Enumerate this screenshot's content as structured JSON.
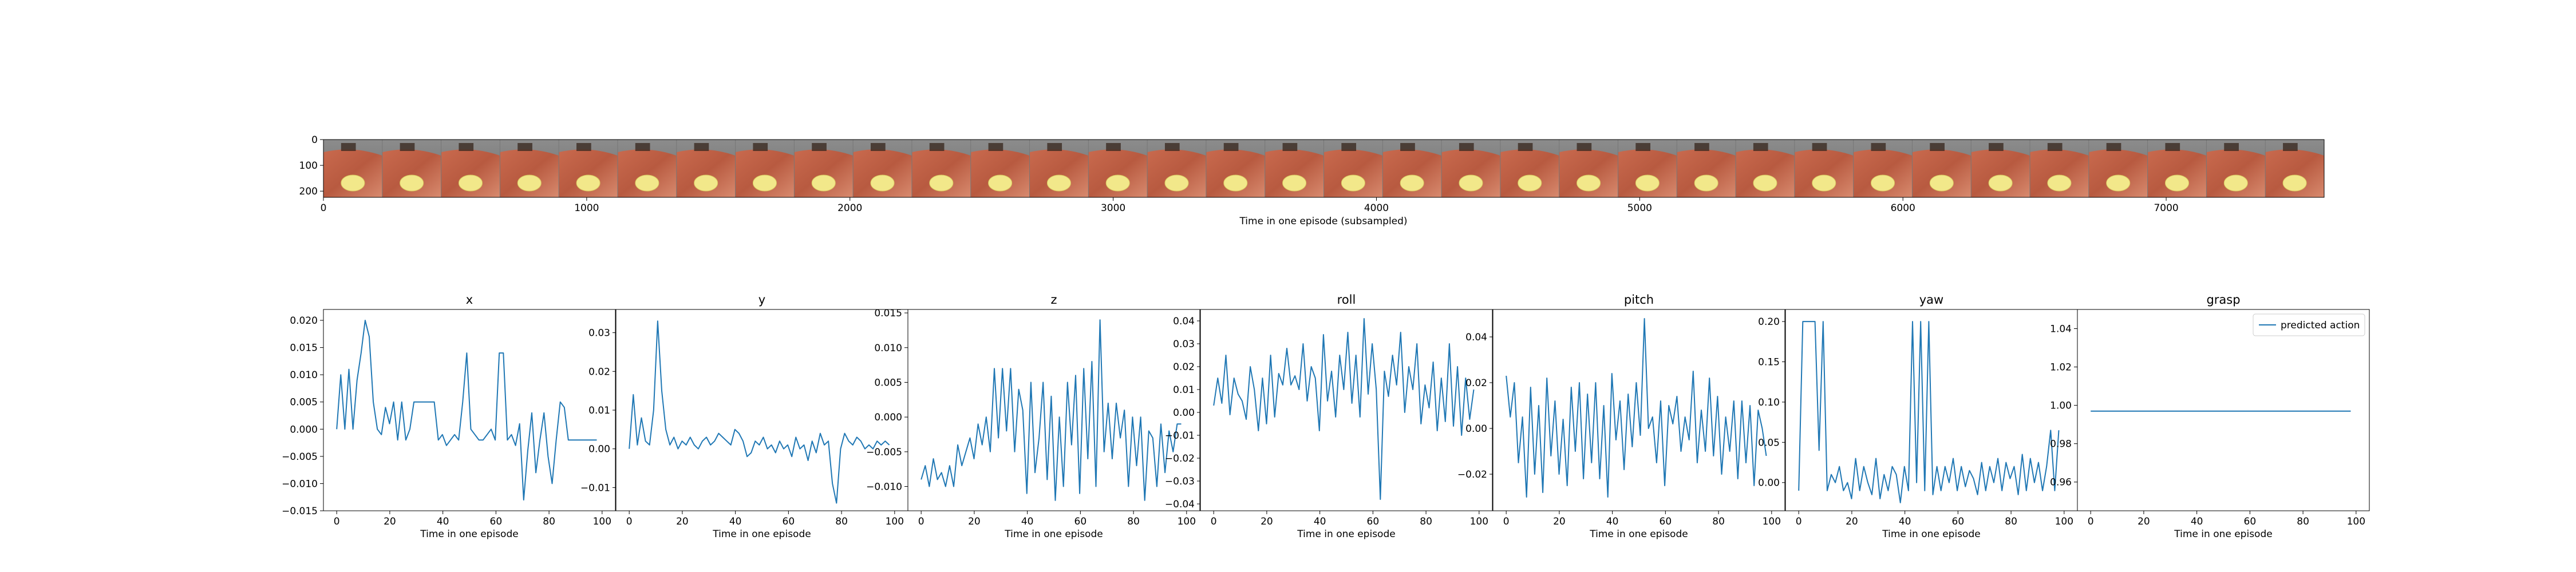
{
  "strip": {
    "xlabel": "Time in one episode (subsampled)",
    "x_ticks": [
      "0",
      "1000",
      "2000",
      "3000",
      "4000",
      "5000",
      "6000",
      "7000"
    ],
    "y_ticks": [
      "0",
      "100",
      "200"
    ],
    "frame_count": 34
  },
  "chart_data": [
    {
      "type": "line",
      "title": "x",
      "xlabel": "Time in one episode",
      "xlim": [
        -5,
        105
      ],
      "ylim": [
        -0.015,
        0.022
      ],
      "x_ticks": [
        "0",
        "20",
        "40",
        "60",
        "80",
        "100"
      ],
      "y_ticks": [
        "−0.015",
        "−0.010",
        "−0.005",
        "0.000",
        "0.005",
        "0.010",
        "0.015",
        "0.020"
      ],
      "y_tick_values": [
        -0.015,
        -0.01,
        -0.005,
        0.0,
        0.005,
        0.01,
        0.015,
        0.02
      ],
      "series": [
        {
          "values": [
            0.0,
            0.01,
            0.0,
            0.011,
            0.0,
            0.009,
            0.014,
            0.02,
            0.017,
            0.005,
            0.0,
            -0.001,
            0.004,
            0.001,
            0.005,
            -0.002,
            0.005,
            -0.002,
            0.0,
            0.005,
            0.005,
            0.005,
            0.005,
            0.005,
            0.005,
            -0.002,
            -0.001,
            -0.003,
            -0.002,
            -0.001,
            -0.002,
            0.005,
            0.014,
            0.0,
            -0.001,
            -0.002,
            -0.002,
            -0.001,
            0.0,
            -0.002,
            0.014,
            0.014,
            -0.002,
            -0.001,
            -0.003,
            0.001,
            -0.013,
            -0.004,
            0.003,
            -0.008,
            -0.002,
            0.003,
            -0.005,
            -0.01,
            -0.002,
            0.005,
            0.004,
            -0.002,
            -0.002,
            -0.002,
            -0.002,
            -0.002,
            -0.002,
            -0.002,
            -0.002
          ]
        }
      ]
    },
    {
      "type": "line",
      "title": "y",
      "xlabel": "Time in one episode",
      "xlim": [
        -5,
        105
      ],
      "ylim": [
        -0.016,
        0.036
      ],
      "x_ticks": [
        "0",
        "20",
        "40",
        "60",
        "80",
        "100"
      ],
      "y_ticks": [
        "−0.01",
        "0.00",
        "0.01",
        "0.02",
        "0.03"
      ],
      "y_tick_values": [
        -0.01,
        0.0,
        0.01,
        0.02,
        0.03
      ],
      "series": [
        {
          "values": [
            0.0,
            0.014,
            0.001,
            0.008,
            0.002,
            0.001,
            0.01,
            0.033,
            0.015,
            0.005,
            0.001,
            0.003,
            0.0,
            0.002,
            0.001,
            0.003,
            0.001,
            0.0,
            0.002,
            0.003,
            0.001,
            0.002,
            0.004,
            0.003,
            0.002,
            0.001,
            0.005,
            0.004,
            0.002,
            -0.002,
            -0.001,
            0.002,
            0.001,
            0.003,
            0.0,
            0.001,
            -0.001,
            0.002,
            0.0,
            0.001,
            -0.002,
            0.003,
            0.0,
            0.001,
            -0.003,
            0.002,
            -0.001,
            0.004,
            0.001,
            0.002,
            -0.009,
            -0.014,
            0.0,
            0.004,
            0.002,
            0.001,
            0.003,
            0.002,
            0.0,
            0.001,
            0.0,
            0.002,
            0.001,
            0.002,
            0.001
          ]
        }
      ]
    },
    {
      "type": "line",
      "title": "z",
      "xlabel": "Time in one episode",
      "xlim": [
        -5,
        105
      ],
      "ylim": [
        -0.0135,
        0.0155
      ],
      "x_ticks": [
        "0",
        "20",
        "40",
        "60",
        "80",
        "100"
      ],
      "y_ticks": [
        "−0.010",
        "−0.005",
        "0.000",
        "0.005",
        "0.010",
        "0.015"
      ],
      "y_tick_values": [
        -0.01,
        -0.005,
        0.0,
        0.005,
        0.01,
        0.015
      ],
      "series": [
        {
          "values": [
            -0.009,
            -0.007,
            -0.01,
            -0.006,
            -0.009,
            -0.008,
            -0.01,
            -0.007,
            -0.01,
            -0.004,
            -0.007,
            -0.005,
            -0.003,
            -0.006,
            -0.001,
            -0.004,
            0.0,
            -0.005,
            0.007,
            -0.003,
            0.007,
            -0.002,
            0.007,
            -0.005,
            0.004,
            0.001,
            -0.011,
            0.005,
            -0.008,
            -0.003,
            0.005,
            -0.009,
            0.003,
            -0.012,
            0.0,
            -0.01,
            0.005,
            -0.004,
            0.006,
            -0.011,
            0.007,
            -0.006,
            0.008,
            -0.01,
            0.014,
            -0.005,
            0.002,
            -0.006,
            0.002,
            -0.003,
            0.001,
            -0.01,
            0.0,
            -0.007,
            0.0,
            -0.012,
            -0.002,
            -0.003,
            -0.01,
            -0.001,
            -0.008,
            -0.002,
            -0.005,
            -0.001,
            -0.001
          ]
        }
      ]
    },
    {
      "type": "line",
      "title": "roll",
      "xlabel": "Time in one episode",
      "xlim": [
        -5,
        105
      ],
      "ylim": [
        -0.043,
        0.045
      ],
      "x_ticks": [
        "0",
        "20",
        "40",
        "60",
        "80",
        "100"
      ],
      "y_ticks": [
        "−0.04",
        "−0.03",
        "−0.02",
        "−0.01",
        "0.00",
        "0.01",
        "0.02",
        "0.03",
        "0.04"
      ],
      "y_tick_values": [
        -0.04,
        -0.03,
        -0.02,
        -0.01,
        0.0,
        0.01,
        0.02,
        0.03,
        0.04
      ],
      "series": [
        {
          "values": [
            0.003,
            0.015,
            0.004,
            0.025,
            -0.001,
            0.015,
            0.008,
            0.005,
            -0.003,
            0.02,
            0.01,
            -0.008,
            0.015,
            -0.005,
            0.025,
            -0.002,
            0.017,
            0.012,
            0.028,
            0.012,
            0.016,
            0.01,
            0.03,
            0.005,
            0.02,
            0.015,
            -0.008,
            0.034,
            0.005,
            0.018,
            -0.002,
            0.025,
            0.01,
            0.035,
            0.004,
            0.025,
            -0.002,
            0.041,
            0.008,
            0.03,
            0.01,
            -0.038,
            0.018,
            0.007,
            0.025,
            0.012,
            0.035,
            0.0,
            0.02,
            0.01,
            0.03,
            -0.005,
            0.012,
            0.002,
            0.022,
            -0.008,
            0.015,
            -0.004,
            0.03,
            -0.006,
            0.02,
            -0.01,
            0.015,
            -0.003,
            0.01
          ]
        }
      ]
    },
    {
      "type": "line",
      "title": "pitch",
      "xlabel": "Time in one episode",
      "xlim": [
        -5,
        105
      ],
      "ylim": [
        -0.036,
        0.052
      ],
      "x_ticks": [
        "0",
        "20",
        "40",
        "60",
        "80",
        "100"
      ],
      "y_ticks": [
        "−0.02",
        "0.00",
        "0.02",
        "0.04"
      ],
      "y_tick_values": [
        -0.02,
        0.0,
        0.02,
        0.04
      ],
      "series": [
        {
          "values": [
            0.023,
            0.005,
            0.02,
            -0.015,
            0.005,
            -0.03,
            0.018,
            -0.02,
            0.01,
            -0.028,
            0.022,
            -0.012,
            0.012,
            -0.02,
            0.004,
            -0.025,
            0.018,
            -0.01,
            0.02,
            -0.022,
            0.015,
            -0.015,
            0.02,
            -0.022,
            0.01,
            -0.03,
            0.024,
            -0.005,
            0.012,
            -0.018,
            0.015,
            -0.008,
            0.02,
            -0.003,
            0.048,
            0.0,
            0.005,
            -0.015,
            0.012,
            -0.025,
            0.01,
            0.002,
            0.014,
            -0.01,
            0.005,
            -0.005,
            0.025,
            -0.015,
            0.008,
            -0.01,
            0.022,
            -0.012,
            0.014,
            -0.02,
            0.005,
            -0.01,
            0.012,
            -0.022,
            0.012,
            -0.015,
            0.01,
            -0.025,
            0.008,
            0.0,
            -0.012
          ]
        }
      ]
    },
    {
      "type": "line",
      "title": "yaw",
      "xlabel": "Time in one episode",
      "xlim": [
        -5,
        105
      ],
      "ylim": [
        -0.035,
        0.215
      ],
      "x_ticks": [
        "0",
        "20",
        "40",
        "60",
        "80",
        "100"
      ],
      "y_ticks": [
        "0.00",
        "0.05",
        "0.10",
        "0.15",
        "0.20"
      ],
      "y_tick_values": [
        0.0,
        0.05,
        0.1,
        0.15,
        0.2
      ],
      "series": [
        {
          "values": [
            -0.01,
            0.2,
            0.2,
            0.2,
            0.2,
            0.04,
            0.2,
            -0.01,
            0.01,
            0.0,
            0.02,
            -0.01,
            0.0,
            -0.02,
            0.03,
            -0.01,
            0.02,
            0.0,
            -0.015,
            0.03,
            -0.02,
            0.01,
            -0.01,
            0.02,
            0.01,
            -0.025,
            0.02,
            -0.01,
            0.2,
            0.0,
            0.2,
            -0.01,
            0.2,
            -0.015,
            0.02,
            -0.01,
            0.02,
            0.0,
            0.03,
            -0.01,
            0.02,
            -0.005,
            0.015,
            0.005,
            -0.015,
            0.025,
            -0.01,
            0.02,
            0.0,
            0.03,
            -0.01,
            0.025,
            0.005,
            0.02,
            -0.015,
            0.035,
            -0.01,
            0.03,
            0.0,
            0.025,
            -0.01,
            0.02,
            0.065,
            -0.01,
            0.065
          ]
        }
      ]
    },
    {
      "type": "line",
      "title": "grasp",
      "xlabel": "Time in one episode",
      "xlim": [
        -5,
        105
      ],
      "ylim": [
        0.945,
        1.05
      ],
      "x_ticks": [
        "0",
        "20",
        "40",
        "60",
        "80",
        "100"
      ],
      "y_ticks": [
        "0.96",
        "0.98",
        "1.00",
        "1.02",
        "1.04"
      ],
      "y_tick_values": [
        0.96,
        0.98,
        1.0,
        1.02,
        1.04
      ],
      "series": [
        {
          "name": "predicted action",
          "values": [
            0.997,
            0.997
          ]
        }
      ],
      "legend": "top-right"
    }
  ],
  "colors": {
    "line": "#1f77b4",
    "axes": "#000000",
    "background": "#ffffff"
  }
}
